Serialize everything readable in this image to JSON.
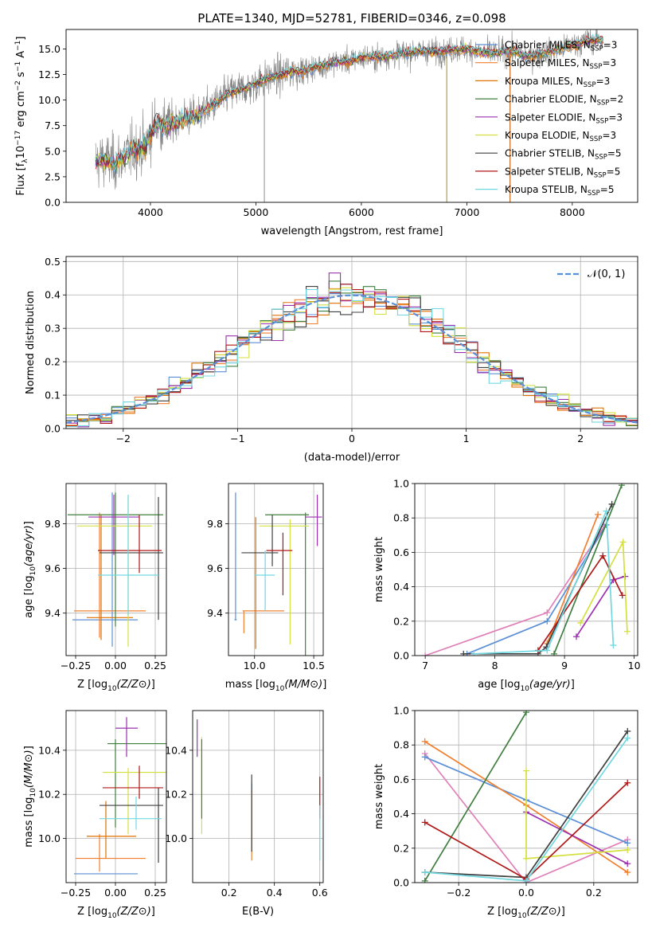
{
  "figure": {
    "title": "PLATE=1340, MJD=52781, FIBERID=0346, z=0.098"
  },
  "series_styles": [
    {
      "name": "Chabrier MILES, N",
      "sub": "SSP",
      "tail": "=3",
      "color": "#5b8fd6"
    },
    {
      "name": "Salpeter MILES, N",
      "sub": "SSP",
      "tail": "=3",
      "color": "#f08030"
    },
    {
      "name": "Kroupa MILES, N",
      "sub": "SSP",
      "tail": "=3",
      "color": "#e07000"
    },
    {
      "name": "Chabrier ELODIE, N",
      "sub": "SSP",
      "tail": "=2",
      "color": "#3f7f3f"
    },
    {
      "name": "Salpeter ELODIE, N",
      "sub": "SSP",
      "tail": "=3",
      "color": "#9b30b0"
    },
    {
      "name": "Kroupa ELODIE, N",
      "sub": "SSP",
      "tail": "=3",
      "color": "#d4e040"
    },
    {
      "name": "Chabrier STELIB, N",
      "sub": "SSP",
      "tail": "=5",
      "color": "#404040"
    },
    {
      "name": "Salpeter STELIB, N",
      "sub": "SSP",
      "tail": "=5",
      "color": "#b01818"
    },
    {
      "name": "Kroupa STELIB, N",
      "sub": "SSP",
      "tail": "=5",
      "color": "#70d8e0"
    }
  ],
  "chart_data": [
    {
      "id": "spectrum",
      "type": "line",
      "xlabel": "wavelength [Angstrom, rest frame]",
      "ylabel_parts": [
        "Flux [f",
        "λ",
        "10",
        "−17",
        " erg cm",
        "−2",
        " s",
        "−1",
        " A",
        "−1",
        "]"
      ],
      "xlim": [
        3200,
        8620
      ],
      "ylim": [
        0,
        16.9
      ],
      "xticks": [
        4000,
        5000,
        6000,
        7000,
        8000
      ],
      "yticks": [
        0.0,
        2.5,
        5.0,
        7.5,
        10.0,
        12.5,
        15.0
      ],
      "ytick_labels": [
        "0.0",
        "2.5",
        "5.0",
        "7.5",
        "10.0",
        "12.5",
        "15.0"
      ],
      "data_color": "#808080",
      "continuum": [
        [
          3500,
          4.0
        ],
        [
          3550,
          4.2
        ],
        [
          3650,
          3.8
        ],
        [
          3750,
          4.5
        ],
        [
          3850,
          5.2
        ],
        [
          3950,
          5.5
        ],
        [
          4050,
          7.8
        ],
        [
          4150,
          7.4
        ],
        [
          4250,
          8.0
        ],
        [
          4350,
          8.3
        ],
        [
          4450,
          8.6
        ],
        [
          4550,
          9.2
        ],
        [
          4650,
          9.9
        ],
        [
          4750,
          10.7
        ],
        [
          4850,
          11.0
        ],
        [
          4950,
          11.3
        ],
        [
          5050,
          11.9
        ],
        [
          5150,
          12.2
        ],
        [
          5250,
          12.5
        ],
        [
          5350,
          12.9
        ],
        [
          5450,
          12.8
        ],
        [
          5550,
          13.2
        ],
        [
          5650,
          13.4
        ],
        [
          5750,
          13.7
        ],
        [
          5850,
          13.8
        ],
        [
          5950,
          14.0
        ],
        [
          6050,
          14.2
        ],
        [
          6150,
          14.2
        ],
        [
          6250,
          14.3
        ],
        [
          6350,
          14.5
        ],
        [
          6450,
          14.6
        ],
        [
          6550,
          14.8
        ],
        [
          6650,
          14.8
        ],
        [
          6750,
          14.7
        ],
        [
          6850,
          14.9
        ],
        [
          6950,
          15.0
        ],
        [
          7050,
          14.9
        ],
        [
          7150,
          14.6
        ],
        [
          7250,
          14.6
        ],
        [
          7350,
          14.7
        ],
        [
          7450,
          14.8
        ],
        [
          7550,
          14.3
        ],
        [
          7650,
          14.4
        ],
        [
          7750,
          14.6
        ],
        [
          7850,
          14.9
        ],
        [
          7950,
          15.2
        ],
        [
          8050,
          15.5
        ],
        [
          8150,
          15.8
        ],
        [
          8300,
          15.9
        ]
      ],
      "drop_lines_x": [
        5080,
        6810,
        7410
      ]
    },
    {
      "id": "residuals",
      "type": "histogram",
      "xlabel": "(data-model)/error",
      "ylabel": "Normed distribution",
      "xlim": [
        -2.5,
        2.5
      ],
      "ylim": [
        0,
        0.515
      ],
      "xticks": [
        -2,
        -1,
        0,
        1,
        2
      ],
      "xtick_labels": [
        "−2",
        "−1",
        "0",
        "1",
        "2"
      ],
      "yticks": [
        0.0,
        0.1,
        0.2,
        0.3,
        0.4,
        0.5
      ],
      "ytick_labels": [
        "0.0",
        "0.1",
        "0.2",
        "0.3",
        "0.4",
        "0.5"
      ],
      "legend": "𝒩(0, 1)",
      "gauss_color": "#5b8fd6"
    },
    {
      "id": "age_vs_Z",
      "type": "scatter",
      "xlabel": "Z [log10(Z/Z⊙)]",
      "ylabel": "age  [log10(age/yr)]",
      "xlim": [
        -0.31,
        0.32
      ],
      "ylim": [
        9.21,
        9.98
      ],
      "xticks": [
        -0.25,
        0.0,
        0.25
      ],
      "xtick_labels": [
        "−0.25",
        "0.00",
        "0.25"
      ],
      "yticks": [
        9.4,
        9.6,
        9.8
      ],
      "ytick_labels": [
        "9.4",
        "9.6",
        "9.8"
      ],
      "points": [
        {
          "x": -0.02,
          "y": 9.37,
          "xerr": [
            0.25,
            0.16
          ],
          "yerr": [
            0.12,
            0.57
          ],
          "s": 0
        },
        {
          "x": -0.1,
          "y": 9.41,
          "xerr": [
            0.16,
            0.29
          ],
          "yerr": [
            0.12,
            0.44
          ],
          "s": 1
        },
        {
          "x": -0.09,
          "y": 9.38,
          "xerr": [
            0.09,
            0.2
          ],
          "yerr": [
            0.1,
            0.46
          ],
          "s": 2
        },
        {
          "x": 0.0,
          "y": 9.84,
          "xerr": [
            0.3,
            0.3
          ],
          "yerr": [
            0.5,
            0.1
          ],
          "s": 3
        },
        {
          "x": -0.01,
          "y": 9.83,
          "xerr": [
            0.16,
            0.16
          ],
          "yerr": [
            0.17,
            0.1
          ],
          "s": 4
        },
        {
          "x": 0.08,
          "y": 9.79,
          "xerr": [
            0.32,
            0.15
          ],
          "yerr": [
            0.54,
            0.13
          ],
          "s": 5
        },
        {
          "x": 0.27,
          "y": 9.67,
          "xerr": [
            0.37,
            0.03
          ],
          "yerr": [
            0.3,
            0.25
          ],
          "s": 6
        },
        {
          "x": 0.15,
          "y": 9.68,
          "xerr": [
            0.26,
            0.14
          ],
          "yerr": [
            0.1,
            0.16
          ],
          "s": 7
        },
        {
          "x": 0.08,
          "y": 9.57,
          "xerr": [
            0.19,
            0.19
          ],
          "yerr": [
            0.18,
            0.36
          ],
          "s": 8
        }
      ]
    },
    {
      "id": "age_vs_mass",
      "type": "scatter",
      "xlabel": "mass [log10(M/M⊙)]",
      "ylabel": "",
      "xlim": [
        9.78,
        10.58
      ],
      "ylim": [
        9.21,
        9.98
      ],
      "xticks": [
        10.0,
        10.5
      ],
      "xtick_labels": [
        "10.0",
        "10.5"
      ],
      "yticks": [
        9.4,
        9.6,
        9.8
      ],
      "ytick_labels": [
        "9.4",
        "9.6",
        "9.8"
      ],
      "points": [
        {
          "x": 9.84,
          "y": 9.37,
          "xerr": [
            0.01,
            0.01
          ],
          "yerr": [
            0.0,
            0.57
          ],
          "s": 0
        },
        {
          "x": 9.91,
          "y": 9.41,
          "xerr": [
            0.01,
            0.34
          ],
          "yerr": [
            0.1,
            0.0
          ],
          "s": 1
        },
        {
          "x": 10.01,
          "y": 9.37,
          "xerr": [
            0.0,
            0.0
          ],
          "yerr": [
            0.13,
            0.46
          ],
          "s": 2
        },
        {
          "x": 10.43,
          "y": 9.84,
          "xerr": [
            0.34,
            0.03
          ],
          "yerr": [
            0.65,
            0.01
          ],
          "s": 3
        },
        {
          "x": 10.53,
          "y": 9.83,
          "xerr": [
            0.1,
            0.04
          ],
          "yerr": [
            0.13,
            0.1
          ],
          "s": 4
        },
        {
          "x": 10.3,
          "y": 9.79,
          "xerr": [
            0.26,
            0.16
          ],
          "yerr": [
            0.53,
            0.03
          ],
          "s": 5
        },
        {
          "x": 10.15,
          "y": 9.67,
          "xerr": [
            0.26,
            0.05
          ],
          "yerr": [
            0.06,
            0.17
          ],
          "s": 6
        },
        {
          "x": 10.24,
          "y": 9.68,
          "xerr": [
            0.14,
            0.08
          ],
          "yerr": [
            0.2,
            0.08
          ],
          "s": 7
        },
        {
          "x": 10.09,
          "y": 9.57,
          "xerr": [
            0.09,
            0.08
          ],
          "yerr": [
            0.16,
            0.11
          ],
          "s": 8
        }
      ]
    },
    {
      "id": "weight_vs_age",
      "type": "line",
      "xlabel": "age  [log10(age/yr)]",
      "ylabel": "mass weight",
      "xlim": [
        6.85,
        10.05
      ],
      "ylim": [
        0,
        1.0
      ],
      "xticks": [
        7,
        8,
        9,
        10
      ],
      "xtick_labels": [
        "7",
        "8",
        "9",
        "10"
      ],
      "yticks": [
        0.0,
        0.2,
        0.4,
        0.6,
        0.8,
        1.0
      ],
      "ytick_labels": [
        "0.0",
        "0.2",
        "0.4",
        "0.6",
        "0.8",
        "1.0"
      ],
      "series": [
        {
          "s": 0,
          "x": [
            7.6,
            8.75,
            9.6
          ],
          "y": [
            0.01,
            0.2,
            0.76
          ]
        },
        {
          "s": 1,
          "x": [
            8.75,
            9.48
          ],
          "y": [
            0.07,
            0.82
          ]
        },
        {
          "s": 2,
          "x": [
            7.0,
            8.75,
            9.57
          ],
          "y": [
            0.0,
            0.25,
            0.75
          ]
        },
        {
          "s": 3,
          "x": [
            8.85,
            9.82
          ],
          "y": [
            0.01,
            0.99
          ]
        },
        {
          "s": 4,
          "x": [
            9.17,
            9.7,
            9.87
          ],
          "y": [
            0.11,
            0.44,
            0.46
          ]
        },
        {
          "s": 5,
          "x": [
            9.23,
            9.84,
            9.9
          ],
          "y": [
            0.19,
            0.66,
            0.14
          ]
        },
        {
          "s": 6,
          "x": [
            7.55,
            8.62,
            8.74,
            9.68
          ],
          "y": [
            0.01,
            0.01,
            0.05,
            0.88
          ]
        },
        {
          "s": 7,
          "x": [
            8.62,
            9.55,
            9.83
          ],
          "y": [
            0.03,
            0.58,
            0.35
          ]
        },
        {
          "s": 8,
          "x": [
            7.7,
            8.75,
            9.6,
            9.7
          ],
          "y": [
            0.01,
            0.03,
            0.84,
            0.06
          ]
        }
      ]
    },
    {
      "id": "mass_vs_Z",
      "type": "scatter",
      "xlabel": "Z [log10(Z/Z⊙)]",
      "ylabel": "mass [log10(M/M⊙)]",
      "xlim": [
        -0.31,
        0.32
      ],
      "ylim": [
        9.8,
        10.58
      ],
      "xticks": [
        -0.25,
        0.0,
        0.25
      ],
      "xtick_labels": [
        "−0.25",
        "0.00",
        "0.25"
      ],
      "yticks": [
        10.0,
        10.2,
        10.4
      ],
      "ytick_labels": [
        "10.0",
        "10.2",
        "10.4"
      ],
      "points": [
        {
          "x": -0.02,
          "y": 9.84,
          "xerr": [
            0.24,
            0.16
          ],
          "yerr": [
            0.0,
            0.0
          ],
          "s": 0
        },
        {
          "x": -0.1,
          "y": 9.91,
          "xerr": [
            0.15,
            0.29
          ],
          "yerr": [
            0.06,
            0.11
          ],
          "s": 1
        },
        {
          "x": -0.06,
          "y": 10.01,
          "xerr": [
            0.12,
            0.19
          ],
          "yerr": [
            0.1,
            0.16
          ],
          "s": 2
        },
        {
          "x": 0.0,
          "y": 10.43,
          "xerr": [
            0.05,
            0.32
          ],
          "yerr": [
            0.38,
            0.02
          ],
          "s": 3
        },
        {
          "x": 0.07,
          "y": 10.5,
          "xerr": [
            0.07,
            0.07
          ],
          "yerr": [
            0.13,
            0.05
          ],
          "s": 4
        },
        {
          "x": 0.08,
          "y": 10.3,
          "xerr": [
            0.16,
            0.24
          ],
          "yerr": [
            0.28,
            0.02
          ],
          "s": 5
        },
        {
          "x": 0.27,
          "y": 10.15,
          "xerr": [
            0.37,
            0.03
          ],
          "yerr": [
            0.26,
            0.08
          ],
          "s": 6
        },
        {
          "x": 0.15,
          "y": 10.23,
          "xerr": [
            0.23,
            0.15
          ],
          "yerr": [
            0.05,
            0.1
          ],
          "s": 7
        },
        {
          "x": 0.13,
          "y": 10.09,
          "xerr": [
            0.23,
            0.16
          ],
          "yerr": [
            0.05,
            0.1
          ],
          "s": 8
        }
      ]
    },
    {
      "id": "mass_vs_ebv",
      "type": "scatter",
      "xlabel": "E(B-V)",
      "ylabel": "",
      "xlim": [
        0.04,
        0.615
      ],
      "ylim": [
        9.8,
        10.58
      ],
      "xticks": [
        0.2,
        0.4,
        0.6
      ],
      "xtick_labels": [
        "0.2",
        "0.4",
        "0.6"
      ],
      "yticks": [
        10.0,
        10.2,
        10.4
      ],
      "ytick_labels": [
        "10.0",
        "10.2",
        "10.4"
      ],
      "points": [
        {
          "x": 0.3,
          "y": 10.24,
          "xerr": [
            0,
            0
          ],
          "yerr": [
            0.3,
            0.01
          ],
          "s": 0
        },
        {
          "x": 0.3,
          "y": 10.05,
          "xerr": [
            0,
            0
          ],
          "yerr": [
            0.15,
            0.17
          ],
          "s": 1
        },
        {
          "x": 0.06,
          "y": 10.43,
          "xerr": [
            0,
            0
          ],
          "yerr": [
            0.06,
            0.11
          ],
          "s": 4
        },
        {
          "x": 0.08,
          "y": 10.3,
          "xerr": [
            0,
            0
          ],
          "yerr": [
            0.28,
            0.16
          ],
          "s": 5
        },
        {
          "x": 0.08,
          "y": 10.25,
          "xerr": [
            0,
            0
          ],
          "yerr": [
            0.16,
            0.2
          ],
          "s": 3
        },
        {
          "x": 0.3,
          "y": 10.1,
          "xerr": [
            0,
            0
          ],
          "yerr": [
            0.16,
            0.19
          ],
          "s": 6
        },
        {
          "x": 0.6,
          "y": 10.21,
          "xerr": [
            0,
            0
          ],
          "yerr": [
            0.12,
            0.07
          ],
          "s": 7
        },
        {
          "x": 0.6,
          "y": 10.05,
          "xerr": [
            0,
            0
          ],
          "yerr": [
            0.15,
            0.1
          ],
          "s": 8
        }
      ]
    },
    {
      "id": "weight_vs_Z",
      "type": "line",
      "xlabel": "Z [log10(Z/Z⊙)]",
      "ylabel": "mass weight",
      "xlim": [
        -0.33,
        0.33
      ],
      "ylim": [
        0,
        1.0
      ],
      "xticks": [
        -0.2,
        0.0,
        0.2
      ],
      "xtick_labels": [
        "−0.2",
        "0.0",
        "0.2"
      ],
      "yticks": [
        0.0,
        0.2,
        0.4,
        0.6,
        0.8,
        1.0
      ],
      "ytick_labels": [
        "0.0",
        "0.2",
        "0.4",
        "0.6",
        "0.8",
        "1.0"
      ],
      "series": [
        {
          "s": 0,
          "x": [
            -0.3,
            0.0,
            0.3
          ],
          "y": [
            0.73,
            0.48,
            0.23
          ]
        },
        {
          "s": 1,
          "x": [
            -0.3,
            0.0,
            0.3
          ],
          "y": [
            0.82,
            0.45,
            0.06
          ]
        },
        {
          "s": 2,
          "x": [
            -0.3,
            0.0,
            0.3
          ],
          "y": [
            0.75,
            0.0,
            0.25
          ]
        },
        {
          "s": 3,
          "x": [
            -0.3,
            0.0
          ],
          "y": [
            0.01,
            0.99
          ]
        },
        {
          "s": 4,
          "x": [
            0.0,
            0.3
          ],
          "y": [
            0.41,
            0.11
          ]
        },
        {
          "s": 5,
          "x": [
            0.0,
            0.0,
            0.3
          ],
          "y": [
            0.65,
            0.14,
            0.19
          ]
        },
        {
          "s": 6,
          "x": [
            -0.3,
            0.0,
            0.3
          ],
          "y": [
            0.06,
            0.03,
            0.88
          ]
        },
        {
          "s": 7,
          "x": [
            -0.3,
            0.0,
            0.3
          ],
          "y": [
            0.35,
            0.02,
            0.58
          ]
        },
        {
          "s": 8,
          "x": [
            -0.3,
            0.0,
            0.3
          ],
          "y": [
            0.06,
            0.01,
            0.84
          ]
        }
      ]
    }
  ]
}
